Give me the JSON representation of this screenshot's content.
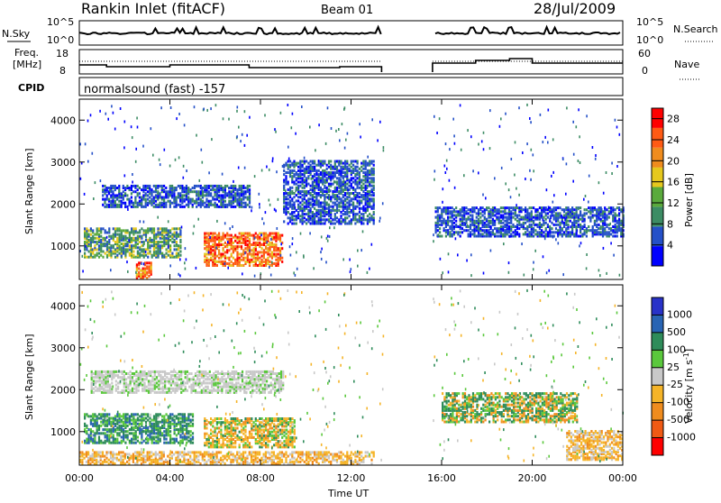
{
  "header": {
    "site": "Rankin Inlet (fitACF)",
    "beam": "Beam 01",
    "date": "28/Jul/2009"
  },
  "status_panel": {
    "left_label_top": "N.Sky",
    "left_ticks_top": [
      "10^5",
      "10^0"
    ],
    "right_label_top": "N.Search",
    "right_ticks_top": [
      "10^5",
      "10^0"
    ],
    "freq_label_line1": "Freq.",
    "freq_label_line2": "[MHz]",
    "freq_ticks": [
      "18",
      "8"
    ],
    "nave_label": "Nave",
    "nave_ticks": [
      "60",
      "0"
    ],
    "cpid_label": "CPID",
    "cpid_text": "normalsound (fast) -157"
  },
  "chart_data": [
    {
      "type": "heatmap",
      "title": "",
      "xlabel": "",
      "ylabel": "Slant Range [km]",
      "x_ticks": [
        "00:00",
        "04:00",
        "08:00",
        "12:00",
        "16:00",
        "20:00",
        "00:00"
      ],
      "y_ticks": [
        "1000",
        "2000",
        "3000",
        "4000"
      ],
      "ylim": [
        200,
        4500
      ],
      "colorbar": {
        "label": "Power [dB]",
        "ticks": [
          "4",
          "8",
          "12",
          "16",
          "20",
          "24",
          "28"
        ],
        "range": [
          0,
          30
        ],
        "colors": [
          "#0000ff",
          "#2450c8",
          "#3c8c64",
          "#5aaa3c",
          "#e6c81e",
          "#f08c1e",
          "#ff5a14",
          "#ff0000"
        ]
      },
      "data_gap_hours": [
        13.4,
        15.6
      ],
      "regions": [
        {
          "t0": 0.2,
          "t1": 4.5,
          "r0": 700,
          "r1": 1400,
          "level": "mid"
        },
        {
          "t0": 1.0,
          "t1": 7.5,
          "r0": 1900,
          "r1": 2400,
          "level": "low"
        },
        {
          "t0": 5.5,
          "t1": 9.0,
          "r0": 500,
          "r1": 1300,
          "level": "high"
        },
        {
          "t0": 2.5,
          "t1": 3.2,
          "r0": 200,
          "r1": 600,
          "level": "high"
        },
        {
          "t0": 15.7,
          "t1": 24,
          "r0": 1200,
          "r1": 1900,
          "level": "low"
        },
        {
          "t0": 9.0,
          "t1": 13.0,
          "r0": 1500,
          "r1": 3000,
          "level": "low"
        }
      ]
    },
    {
      "type": "heatmap",
      "title": "",
      "xlabel": "Time UT",
      "ylabel": "Slant Range [km]",
      "x_ticks": [
        "00:00",
        "04:00",
        "08:00",
        "12:00",
        "16:00",
        "20:00",
        "00:00"
      ],
      "y_ticks": [
        "1000",
        "2000",
        "3000",
        "4000"
      ],
      "ylim": [
        200,
        4500
      ],
      "colorbar": {
        "label": "Velocity [m s^-1]",
        "ticks": [
          "1000",
          "500",
          "100",
          "25",
          "-25",
          "-100",
          "-500",
          "-1000"
        ],
        "colors": [
          "#2832c8",
          "#2864b4",
          "#2e8c5a",
          "#5ac83c",
          "#c8c8c8",
          "#f5b428",
          "#f08c1e",
          "#f05a14",
          "#ff0000"
        ]
      },
      "data_gap_hours": [
        13.4,
        15.6
      ],
      "regions": [
        {
          "t0": 0.5,
          "t1": 9.0,
          "r0": 1900,
          "r1": 2400,
          "level": "grey"
        },
        {
          "t0": 0.2,
          "t1": 5.0,
          "r0": 700,
          "r1": 1400,
          "level": "green"
        },
        {
          "t0": 5.5,
          "t1": 9.5,
          "r0": 600,
          "r1": 1300,
          "level": "orange_green"
        },
        {
          "t0": 0,
          "t1": 13.0,
          "r0": 200,
          "r1": 500,
          "level": "orange"
        },
        {
          "t0": 16.0,
          "t1": 22.0,
          "r0": 1200,
          "r1": 1900,
          "level": "green_orange"
        },
        {
          "t0": 21.5,
          "t1": 24,
          "r0": 300,
          "r1": 1000,
          "level": "orange"
        }
      ]
    }
  ]
}
